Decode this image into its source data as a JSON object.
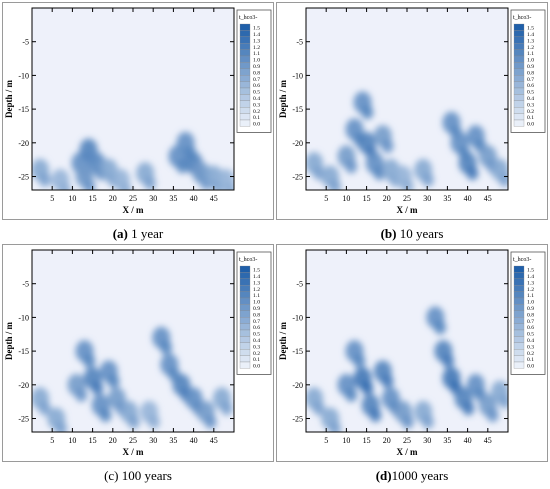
{
  "figure": {
    "panels": [
      {
        "id": "a",
        "caption_tag": "(a)",
        "caption_text": " 1 year"
      },
      {
        "id": "b",
        "caption_tag": "(b)",
        "caption_text": " 10 years"
      },
      {
        "id": "c",
        "caption_tag": "(c)",
        "caption_text": " 100 years"
      },
      {
        "id": "d",
        "caption_tag": "(d)",
        "caption_text": "1000 years"
      }
    ]
  },
  "colors": {
    "background": "#eef1fa",
    "low": "#eaf0f9",
    "high": "#1f5fa9",
    "frame": "#000000"
  },
  "chart_data": [
    {
      "type": "heatmap",
      "panel": "a",
      "xlabel": "X / m",
      "ylabel": "Depth / m",
      "xticks": [
        5,
        10,
        15,
        20,
        25,
        30,
        35,
        40,
        45
      ],
      "yticks": [
        -5,
        -10,
        -15,
        -20,
        -25
      ],
      "xlim": [
        0,
        50
      ],
      "ylim": [
        -27,
        0
      ],
      "legend": {
        "title": "t_hco3-",
        "levels": [
          "1.5",
          "1.4",
          "1.3",
          "1.2",
          "1.1",
          "1.0",
          "0.9",
          "0.8",
          "0.7",
          "0.6",
          "0.5",
          "0.4",
          "0.3",
          "0.2",
          "0.1",
          "0.0"
        ]
      },
      "blobs": [
        {
          "x": 2,
          "y": -24,
          "v": 0.6
        },
        {
          "x": 7,
          "y": -25.5,
          "v": 0.5
        },
        {
          "x": 12,
          "y": -23,
          "v": 0.8
        },
        {
          "x": 14,
          "y": -21,
          "v": 0.9
        },
        {
          "x": 16,
          "y": -23,
          "v": 0.8
        },
        {
          "x": 13,
          "y": -25,
          "v": 0.7
        },
        {
          "x": 19,
          "y": -24,
          "v": 0.6
        },
        {
          "x": 22,
          "y": -25.5,
          "v": 0.5
        },
        {
          "x": 28,
          "y": -24.5,
          "v": 0.6
        },
        {
          "x": 36,
          "y": -22,
          "v": 0.8
        },
        {
          "x": 38,
          "y": -20,
          "v": 0.8
        },
        {
          "x": 40,
          "y": -23,
          "v": 0.9
        },
        {
          "x": 42,
          "y": -24.5,
          "v": 0.7
        },
        {
          "x": 45,
          "y": -25,
          "v": 0.6
        },
        {
          "x": 48,
          "y": -25.5,
          "v": 0.5
        }
      ]
    },
    {
      "type": "heatmap",
      "panel": "b",
      "xlabel": "X / m",
      "ylabel": "Depth / m",
      "xticks": [
        5,
        10,
        15,
        20,
        25,
        30,
        35,
        40,
        45
      ],
      "yticks": [
        -5,
        -10,
        -15,
        -20,
        -25
      ],
      "xlim": [
        0,
        50
      ],
      "ylim": [
        -27,
        0
      ],
      "legend": {
        "title": "t_hco3-",
        "levels": [
          "1.5",
          "1.4",
          "1.3",
          "1.2",
          "1.1",
          "1.0",
          "0.9",
          "0.8",
          "0.7",
          "0.6",
          "0.5",
          "0.4",
          "0.3",
          "0.2",
          "0.1",
          "0.0"
        ]
      },
      "blobs": [
        {
          "x": 2,
          "y": -23,
          "v": 0.6
        },
        {
          "x": 6,
          "y": -25,
          "v": 0.6
        },
        {
          "x": 10,
          "y": -22,
          "v": 0.7
        },
        {
          "x": 12,
          "y": -18,
          "v": 0.8
        },
        {
          "x": 14,
          "y": -14,
          "v": 0.8
        },
        {
          "x": 15,
          "y": -20,
          "v": 0.9
        },
        {
          "x": 17,
          "y": -23,
          "v": 0.8
        },
        {
          "x": 19,
          "y": -19,
          "v": 0.7
        },
        {
          "x": 21,
          "y": -24,
          "v": 0.6
        },
        {
          "x": 24,
          "y": -25,
          "v": 0.5
        },
        {
          "x": 29,
          "y": -24,
          "v": 0.6
        },
        {
          "x": 36,
          "y": -17,
          "v": 0.8
        },
        {
          "x": 38,
          "y": -20,
          "v": 0.8
        },
        {
          "x": 40,
          "y": -23,
          "v": 0.9
        },
        {
          "x": 42,
          "y": -19,
          "v": 0.8
        },
        {
          "x": 45,
          "y": -22,
          "v": 0.7
        },
        {
          "x": 48,
          "y": -24,
          "v": 0.6
        }
      ]
    },
    {
      "type": "heatmap",
      "panel": "c",
      "xlabel": "X / m",
      "ylabel": "Depth / m",
      "xticks": [
        5,
        10,
        15,
        20,
        25,
        30,
        35,
        40,
        45
      ],
      "yticks": [
        -5,
        -10,
        -15,
        -20,
        -25
      ],
      "xlim": [
        0,
        50
      ],
      "ylim": [
        -27,
        0
      ],
      "legend": {
        "title": "t_hco3-",
        "levels": [
          "1.5",
          "1.4",
          "1.3",
          "1.2",
          "1.1",
          "1.0",
          "0.9",
          "0.8",
          "0.7",
          "0.6",
          "0.5",
          "0.4",
          "0.3",
          "0.2",
          "0.1",
          "0.0"
        ]
      },
      "blobs": [
        {
          "x": 2,
          "y": -22,
          "v": 0.6
        },
        {
          "x": 6,
          "y": -25,
          "v": 0.6
        },
        {
          "x": 11,
          "y": -20,
          "v": 0.7
        },
        {
          "x": 13,
          "y": -15,
          "v": 0.8
        },
        {
          "x": 15,
          "y": -19,
          "v": 0.9
        },
        {
          "x": 17,
          "y": -23,
          "v": 0.8
        },
        {
          "x": 19,
          "y": -18,
          "v": 0.8
        },
        {
          "x": 21,
          "y": -22,
          "v": 0.7
        },
        {
          "x": 24,
          "y": -24,
          "v": 0.6
        },
        {
          "x": 29,
          "y": -24,
          "v": 0.5
        },
        {
          "x": 32,
          "y": -13,
          "v": 0.8
        },
        {
          "x": 34,
          "y": -17,
          "v": 0.8
        },
        {
          "x": 37,
          "y": -20,
          "v": 0.9
        },
        {
          "x": 40,
          "y": -22,
          "v": 0.8
        },
        {
          "x": 43,
          "y": -24,
          "v": 0.7
        },
        {
          "x": 47,
          "y": -22,
          "v": 0.6
        }
      ]
    },
    {
      "type": "heatmap",
      "panel": "d",
      "xlabel": "X / m",
      "ylabel": "Depth / m",
      "xticks": [
        5,
        10,
        15,
        20,
        25,
        30,
        35,
        40,
        45
      ],
      "yticks": [
        -5,
        -10,
        -15,
        -20,
        -25
      ],
      "xlim": [
        0,
        50
      ],
      "ylim": [
        -27,
        0
      ],
      "legend": {
        "title": "t_hco3-",
        "levels": [
          "1.5",
          "1.4",
          "1.3",
          "1.2",
          "1.1",
          "1.0",
          "0.9",
          "0.8",
          "0.7",
          "0.6",
          "0.5",
          "0.4",
          "0.3",
          "0.2",
          "0.1",
          "0.0"
        ]
      },
      "blobs": [
        {
          "x": 2,
          "y": -22,
          "v": 0.6
        },
        {
          "x": 6,
          "y": -25,
          "v": 0.6
        },
        {
          "x": 10,
          "y": -20,
          "v": 0.8
        },
        {
          "x": 12,
          "y": -15,
          "v": 0.8
        },
        {
          "x": 14,
          "y": -19,
          "v": 1.0
        },
        {
          "x": 16,
          "y": -23,
          "v": 0.9
        },
        {
          "x": 19,
          "y": -18,
          "v": 0.9
        },
        {
          "x": 21,
          "y": -22,
          "v": 0.8
        },
        {
          "x": 24,
          "y": -24,
          "v": 0.7
        },
        {
          "x": 29,
          "y": -24,
          "v": 0.6
        },
        {
          "x": 32,
          "y": -10,
          "v": 0.8
        },
        {
          "x": 34,
          "y": -15,
          "v": 0.9
        },
        {
          "x": 36,
          "y": -19,
          "v": 1.0
        },
        {
          "x": 39,
          "y": -22,
          "v": 0.9
        },
        {
          "x": 42,
          "y": -20,
          "v": 0.8
        },
        {
          "x": 45,
          "y": -23,
          "v": 0.7
        },
        {
          "x": 48,
          "y": -21,
          "v": 0.6
        }
      ]
    }
  ]
}
